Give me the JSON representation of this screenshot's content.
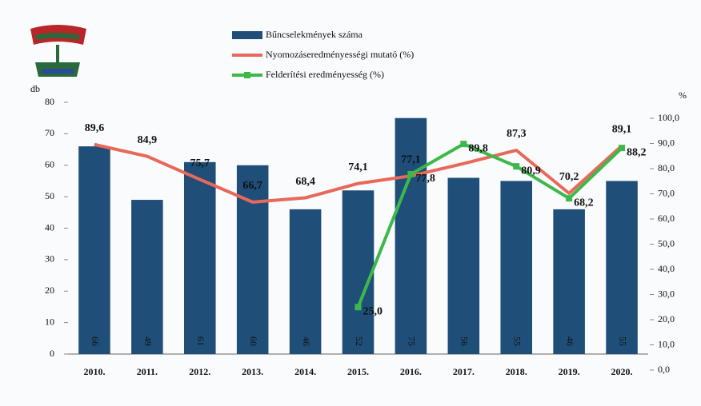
{
  "chart_data": {
    "type": "bar",
    "y_label": "db",
    "y2_label": "%",
    "categories": [
      "2010.",
      "2011.",
      "2012.",
      "2013.",
      "2014.",
      "2015.",
      "2016.",
      "2017.",
      "2018.",
      "2019.",
      "2020."
    ],
    "series": [
      {
        "name": "Bűncselekmények száma",
        "type": "bar",
        "color": "#1f4e79",
        "values": [
          66,
          49,
          61,
          60,
          46,
          52,
          75,
          56,
          55,
          46,
          55
        ]
      },
      {
        "name": "Nyomozáseredményességi mutató (%)",
        "type": "line",
        "axis": "y2",
        "color": "#e8685a",
        "values": [
          89.6,
          84.9,
          75.7,
          66.7,
          68.4,
          74.1,
          77.1,
          82,
          87.3,
          70.2,
          89.1
        ],
        "value_labels": [
          "89,6",
          "84,9",
          "75,7",
          "66,7",
          "68,4",
          "74,1",
          "77,1",
          null,
          "87,3",
          "70,2",
          "89,1"
        ]
      },
      {
        "name": "Felderítési eredményesség (%)",
        "type": "line",
        "axis": "y2",
        "color": "#3cb94a",
        "markers": true,
        "values": [
          null,
          null,
          null,
          null,
          null,
          25.0,
          77.8,
          89.8,
          80.9,
          68.2,
          88.2
        ],
        "value_labels": [
          null,
          null,
          null,
          null,
          null,
          "25,0",
          "77,8",
          "89,8",
          "80,9",
          "68,2",
          "88,2"
        ]
      }
    ],
    "ylim": [
      0,
      80
    ],
    "yticks": [
      0,
      10,
      20,
      30,
      40,
      50,
      60,
      70,
      80
    ],
    "y2lim": [
      0,
      100
    ],
    "y2ticks": [
      {
        "value": 0,
        "label": "0,0"
      },
      {
        "value": 10,
        "label": "10,0"
      },
      {
        "value": 20,
        "label": "20,0"
      },
      {
        "value": 30,
        "label": "30,0"
      },
      {
        "value": 40,
        "label": "40,0"
      },
      {
        "value": 50,
        "label": "50,0"
      },
      {
        "value": 60,
        "label": "60,0"
      },
      {
        "value": 70,
        "label": "70,0"
      },
      {
        "value": 80,
        "label": "80,0"
      },
      {
        "value": 90,
        "label": "90,0"
      },
      {
        "value": 100,
        "label": "100,0"
      }
    ]
  }
}
